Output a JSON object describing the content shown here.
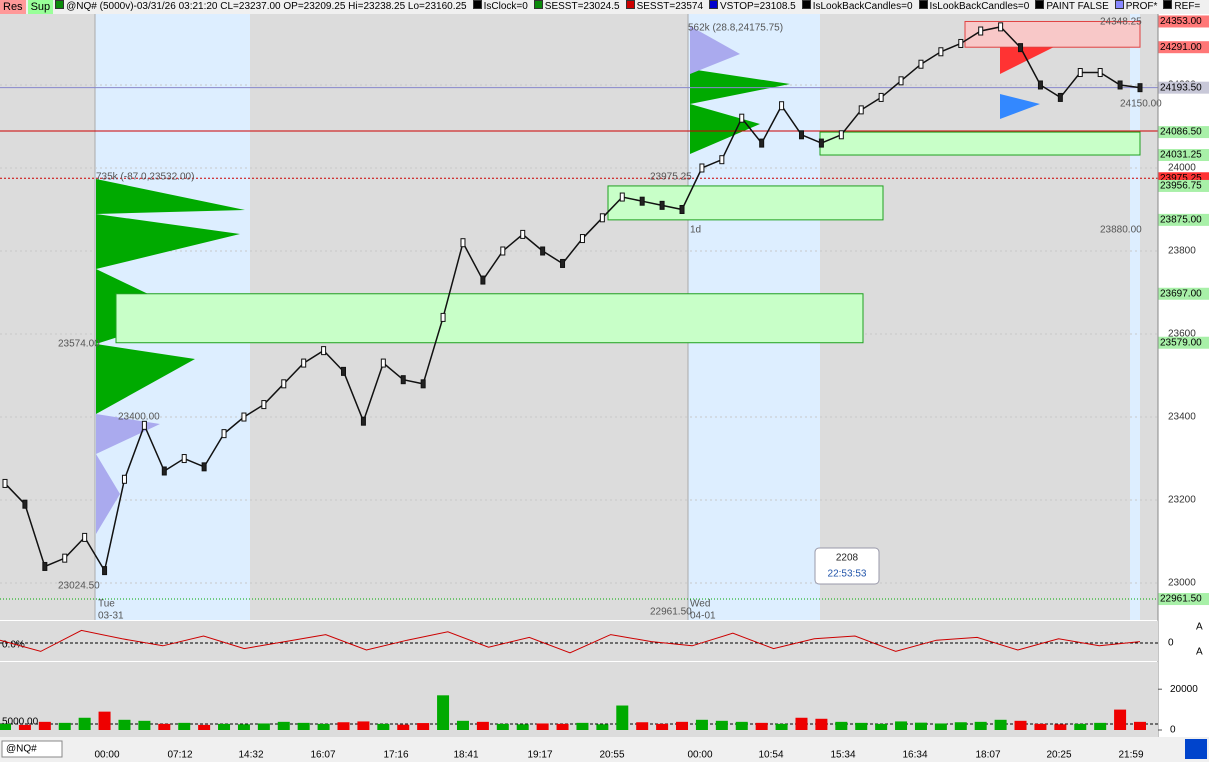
{
  "toolbar": {
    "buttons": [
      "Res",
      "Sup"
    ],
    "items": [
      {
        "text": "@NQ# (5000v)-03/31/26 03:21:20 CL=23237.00 OP=23209.25 Hi=23238.25 Lo=23160.25",
        "color": "#0a8a0a"
      },
      {
        "text": "IsClock=0",
        "color": "#000000"
      },
      {
        "text": "SESST=23024.5",
        "color": "#0a8a0a"
      },
      {
        "text": "SESST=23574",
        "color": "#cc0000"
      },
      {
        "text": "VSTOP=23108.5",
        "color": "#0000cc"
      },
      {
        "text": "IsLookBackCandles=0",
        "color": "#000000"
      },
      {
        "text": "IsLookBackCandles=0",
        "color": "#000000"
      },
      {
        "text": "PAINT FALSE",
        "color": "#000000"
      },
      {
        "text": "PROF*",
        "color": "#8888ff"
      },
      {
        "text": "REF=",
        "color": "#000000"
      }
    ]
  },
  "price_pane": {
    "ylim": [
      22911,
      24371
    ],
    "yticks": [
      23000,
      23200,
      23400,
      23600,
      23800,
      24000,
      24200
    ],
    "levels": [
      {
        "label": "24353.00",
        "price": 24353,
        "color": "#ff7777"
      },
      {
        "label": "24291.00",
        "price": 24291,
        "color": "#ff7777"
      },
      {
        "label": "24193.50",
        "price": 24193.5,
        "color": "#c8c8d8"
      },
      {
        "label": "24086.50",
        "price": 24086.5,
        "color": "#a8f0a8"
      },
      {
        "label": "24031.25",
        "price": 24031.25,
        "color": "#a8f0a8"
      },
      {
        "label": "23975.25",
        "price": 23975.25,
        "color": "#ff3333"
      },
      {
        "label": "23956.75",
        "price": 23956.75,
        "color": "#a8f0a8"
      },
      {
        "label": "23875.00",
        "price": 23875,
        "color": "#a8f0a8"
      },
      {
        "label": "23697.00",
        "price": 23697,
        "color": "#a8f0a8"
      },
      {
        "label": "23579.00",
        "price": 23579,
        "color": "#a8f0a8"
      },
      {
        "label": "22961.50",
        "price": 22961.5,
        "color": "#a8f0a8"
      }
    ],
    "annotations": [
      "562k (28.8,24175.75)",
      "735k (-87.0,23532.00)",
      "23975.25",
      "23574.00",
      "23024.50",
      "22961.50",
      "24348.25",
      "24150.00",
      "23880.00",
      "Tue",
      "03-31",
      "Wed",
      "04-01",
      "1d",
      "23400.00"
    ],
    "closes": [
      23240,
      23190,
      23040,
      23060,
      23110,
      23030,
      23250,
      23380,
      23270,
      23300,
      23280,
      23360,
      23400,
      23430,
      23480,
      23530,
      23560,
      23510,
      23390,
      23530,
      23490,
      23480,
      23640,
      23820,
      23730,
      23800,
      23840,
      23800,
      23770,
      23830,
      23880,
      23930,
      23920,
      23910,
      23900,
      24000,
      24020,
      24120,
      24060,
      24150,
      24080,
      24060,
      24080,
      24140,
      24170,
      24210,
      24250,
      24280,
      24300,
      24330,
      24340,
      24290,
      24200,
      24170,
      24230,
      24230,
      24200,
      24193.5
    ],
    "info_box": {
      "count": "2208",
      "time": "22:53:53"
    }
  },
  "oscillator_pane": {
    "ytick": "0",
    "label": "0.0%",
    "values": [
      0.2,
      -0.6,
      0.9,
      0.3,
      -0.2,
      0.5,
      -0.4,
      0.1,
      0.6,
      -0.5,
      0.2,
      0.8,
      -0.3,
      0.4,
      -0.7,
      0.6,
      0.1,
      -0.2,
      0.7,
      -0.4,
      0.3,
      0.5,
      -0.6,
      0.2,
      0.4,
      -0.5,
      0.3,
      -0.2,
      0.1
    ]
  },
  "volume_pane": {
    "ylim": [
      0,
      25000
    ],
    "yticks": [
      0,
      20000
    ],
    "ref_label": "5000.00",
    "values": [
      3000,
      2500,
      4000,
      3500,
      6000,
      9000,
      5000,
      4500,
      3000,
      3500,
      2500,
      3000,
      2800,
      3200,
      4000,
      3500,
      3000,
      3800,
      4200,
      3000,
      2600,
      3400,
      17000,
      4500,
      4000,
      3000,
      2800,
      3200,
      3000,
      3500,
      2800,
      12000,
      3800,
      3000,
      4000,
      5000,
      4500,
      4000,
      3500,
      3000,
      6000,
      5500,
      4000,
      3500,
      3000,
      4200,
      3600,
      3200,
      3800,
      4000,
      5000,
      4500,
      3000,
      2800,
      3000,
      3500,
      10000,
      4000
    ]
  },
  "time_axis": {
    "labels": [
      "00:00",
      "07:12",
      "14:32",
      "16:07",
      "17:16",
      "18:41",
      "19:17",
      "20:55",
      "00:00",
      "10:54",
      "15:34",
      "16:34",
      "18:07",
      "20:25",
      "21:59"
    ]
  },
  "bottom_bar": {
    "symbol": "@NQ#"
  },
  "pane_buttons": [
    "A",
    "A"
  ]
}
